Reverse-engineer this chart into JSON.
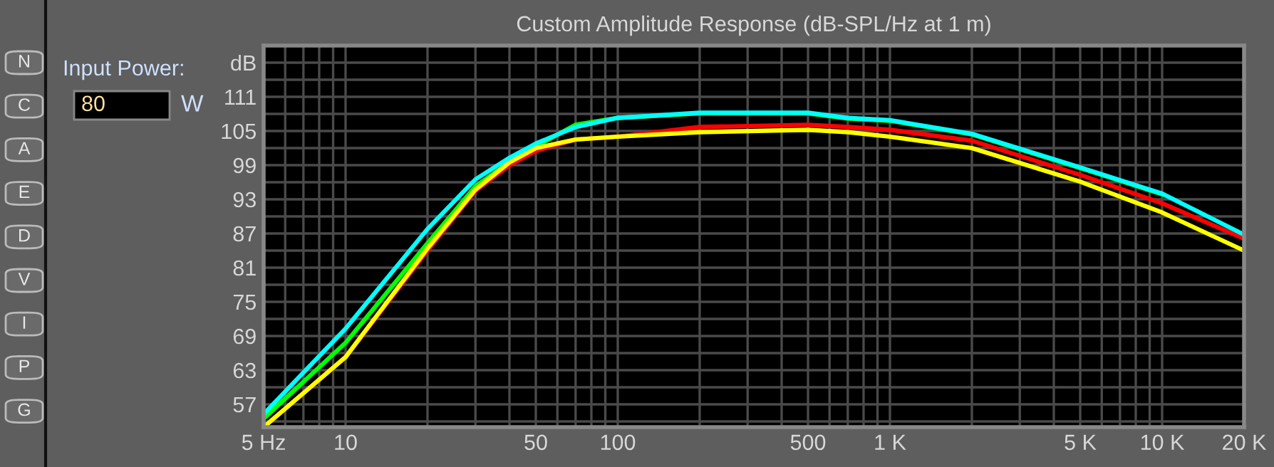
{
  "chart_data": {
    "type": "line",
    "title": "Custom Amplitude Response (dB-SPL/Hz at 1 m)",
    "x": [
      5,
      10,
      20,
      30,
      40,
      50,
      70,
      100,
      200,
      500,
      700,
      1000,
      2000,
      5000,
      10000,
      20000
    ],
    "series": [
      {
        "color": "#00ff00",
        "values": [
          54.5,
          67.8,
          85.3,
          95.3,
          99.5,
          102.3,
          106.1,
          107.3,
          108.1,
          108.1,
          107.2,
          106.8,
          104.4,
          98.5,
          93.9,
          null
        ]
      },
      {
        "color": "#ff0000",
        "values": [
          53,
          65.3,
          84,
          94.5,
          99,
          101.5,
          103.5,
          104,
          105.7,
          106.1,
          105.7,
          105.2,
          103.3,
          97.3,
          92.3,
          86.1
        ]
      },
      {
        "color": "#ffff00",
        "values": [
          53,
          65.3,
          84.4,
          94.7,
          99.5,
          102,
          103.5,
          104,
          104.8,
          105.2,
          104.8,
          104,
          102,
          96.1,
          90.7,
          84
        ]
      },
      {
        "color": "#00ffff",
        "values": [
          55.3,
          70.3,
          87.8,
          96.5,
          100.3,
          102.8,
          105.7,
          107.3,
          108.2,
          108.2,
          107.3,
          106.9,
          104.5,
          98.6,
          94,
          86.8
        ]
      }
    ],
    "log": "x",
    "xlim": [
      5,
      20000
    ],
    "xticks": [
      {
        "value": 5,
        "label": "5 Hz"
      },
      {
        "value": 6,
        "label": null
      },
      {
        "value": 7,
        "label": null
      },
      {
        "value": 8,
        "label": null
      },
      {
        "value": 9,
        "label": null
      },
      10,
      {
        "value": 20,
        "label": null
      },
      {
        "value": 30,
        "label": null
      },
      {
        "value": 40,
        "label": null
      },
      50,
      {
        "value": 60,
        "label": null
      },
      {
        "value": 70,
        "label": null
      },
      {
        "value": 80,
        "label": null
      },
      {
        "value": 90,
        "label": null
      },
      100,
      {
        "value": 200,
        "label": null
      },
      {
        "value": 300,
        "label": null
      },
      {
        "value": 400,
        "label": null
      },
      500,
      {
        "value": 600,
        "label": null
      },
      {
        "value": 700,
        "label": null
      },
      {
        "value": 800,
        "label": null
      },
      {
        "value": 900,
        "label": null
      },
      {
        "value": 1000,
        "label": "1 K"
      },
      {
        "value": 2000,
        "label": null
      },
      {
        "value": 3000,
        "label": null
      },
      {
        "value": 4000,
        "label": null
      },
      {
        "value": 5000,
        "label": "5 K"
      },
      {
        "value": 6000,
        "label": null
      },
      {
        "value": 7000,
        "label": null
      },
      {
        "value": 8000,
        "label": null
      },
      {
        "value": 9000,
        "label": null
      },
      {
        "value": 10000,
        "label": "10 K"
      },
      {
        "value": 20000,
        "label": "20 K"
      }
    ],
    "ylim": [
      53,
      120
    ],
    "yticks": [
      {
        "value": 54,
        "label": null
      },
      57,
      {
        "value": 60,
        "label": null
      },
      63,
      {
        "value": 66,
        "label": null
      },
      69,
      {
        "value": 72,
        "label": null
      },
      75,
      {
        "value": 78,
        "label": null
      },
      81,
      {
        "value": 84,
        "label": null
      },
      87,
      {
        "value": 90,
        "label": null
      },
      93,
      {
        "value": 96,
        "label": null
      },
      99,
      {
        "value": 102,
        "label": null
      },
      105,
      {
        "value": 108,
        "label": null
      },
      111,
      {
        "value": 114,
        "label": null
      },
      {
        "value": 117,
        "label": "dB"
      }
    ],
    "grid": true,
    "marker": "none",
    "line_style": "solid",
    "annotations": [
      "N",
      "C",
      "A",
      "E",
      "D",
      "V",
      "I",
      "P",
      "G",
      "Input Power:",
      "80",
      "W"
    ]
  }
}
